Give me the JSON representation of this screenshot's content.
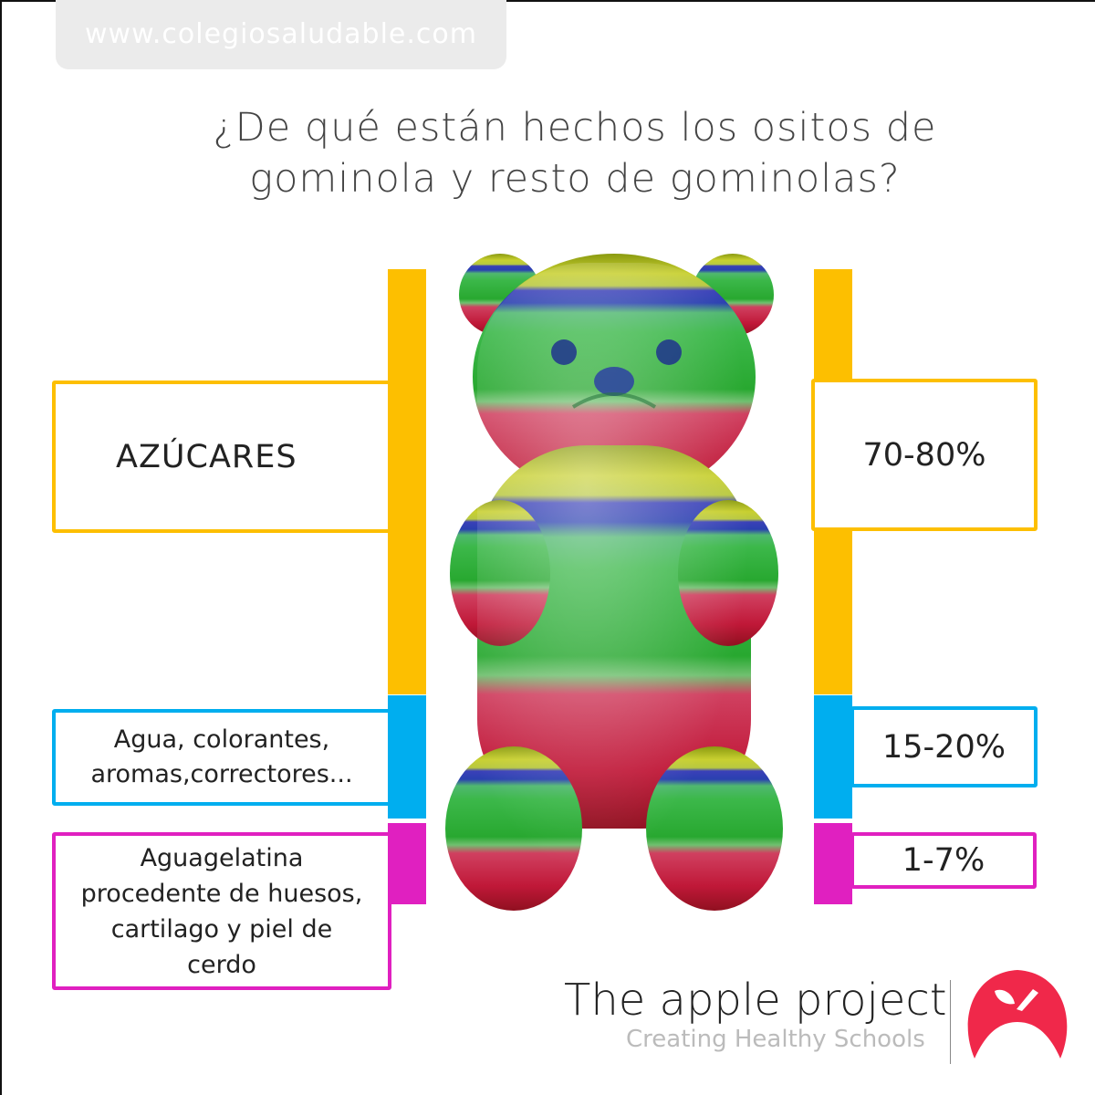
{
  "header": {
    "url": "www.colegiosaludable.com"
  },
  "title": {
    "line1": "¿De qué están hechos los ositos de",
    "line2": "gominola y resto de gominolas?"
  },
  "components": [
    {
      "label": "AZÚCARES",
      "value": "70-80%",
      "color": "#fdbf00"
    },
    {
      "label_line1": "Agua, colorantes,",
      "label_line2": "aromas,correctores...",
      "value": "15-20%",
      "color": "#00aeef"
    },
    {
      "label_line1": "Aguagelatina",
      "label_line2": "procedente de huesos,",
      "label_line3": "cartilago y piel de",
      "label_line4": "cerdo",
      "value": "1-7%",
      "color": "#e020c0"
    }
  ],
  "footer": {
    "brand": "The apple project",
    "slogan": "Creating Healthy Schools",
    "logo_color": "#f0284a",
    "logo_icon": "apple-icon"
  }
}
